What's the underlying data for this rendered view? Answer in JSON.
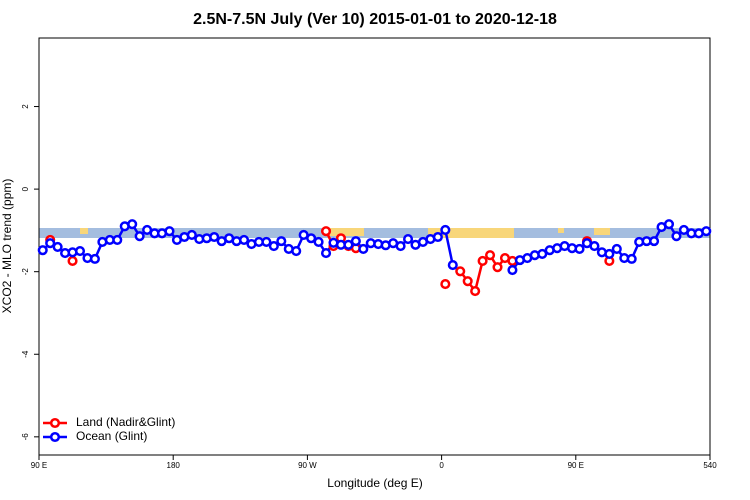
{
  "chart_data": {
    "type": "line",
    "title": "2.5N-7.5N July (Ver 10)   2015-01-01 to 2020-12-18",
    "x_label": "Longitude (deg E)",
    "y_label": "XCO2 - MLO trend (ppm)",
    "x": [
      92.5,
      97.5,
      102.5,
      107.5,
      112.5,
      117.5,
      122.5,
      127.5,
      132.5,
      137.5,
      142.5,
      147.5,
      152.5,
      157.5,
      162.5,
      167.5,
      172.5,
      177.5,
      182.5,
      187.5,
      192.5,
      197.5,
      202.5,
      207.5,
      212.5,
      217.5,
      222.5,
      227.5,
      232.5,
      237.5,
      242.5,
      247.5,
      252.5,
      257.5,
      262.5,
      267.5,
      272.5,
      277.5,
      282.5,
      287.5,
      292.5,
      297.5,
      302.5,
      307.5,
      312.5,
      317.5,
      322.5,
      327.5,
      332.5,
      337.5,
      342.5,
      347.5,
      352.5,
      357.5,
      362.5,
      367.5,
      372.5,
      377.5,
      382.5,
      387.5,
      392.5,
      397.5,
      402.5,
      407.5,
      412.5,
      417.5,
      422.5,
      427.5,
      432.5,
      437.5,
      442.5,
      447.5,
      452.5,
      457.5,
      462.5,
      467.5,
      472.5,
      477.5,
      482.5,
      487.5,
      492.5,
      497.5,
      502.5,
      507.5,
      512.5,
      517.5,
      522.5,
      527.5,
      532.5,
      537.5
    ],
    "series": [
      {
        "name": "Land (Nadir&Glint)",
        "color": "#ff0000",
        "values": [
          null,
          -1.23,
          null,
          null,
          -1.74,
          null,
          null,
          null,
          null,
          null,
          null,
          null,
          null,
          null,
          null,
          null,
          null,
          null,
          null,
          null,
          null,
          null,
          null,
          null,
          null,
          null,
          null,
          null,
          null,
          null,
          null,
          null,
          null,
          null,
          null,
          null,
          null,
          null,
          -1.02,
          -1.38,
          -1.19,
          -1.38,
          -1.43,
          null,
          null,
          null,
          null,
          null,
          null,
          null,
          null,
          null,
          null,
          null,
          -2.3,
          null,
          -1.99,
          -2.23,
          -2.47,
          -1.74,
          -1.6,
          -1.89,
          -1.67,
          -1.74,
          null,
          null,
          null,
          null,
          null,
          null,
          null,
          null,
          null,
          -1.26,
          null,
          null,
          -1.74,
          null,
          null,
          null,
          null,
          null,
          null,
          null,
          null,
          null,
          null,
          null,
          null,
          null
        ]
      },
      {
        "name": "Ocean (Glint)",
        "color": "#0000ff",
        "values": [
          -1.48,
          -1.31,
          -1.4,
          -1.55,
          -1.53,
          -1.5,
          -1.67,
          -1.69,
          -1.28,
          -1.23,
          -1.23,
          -0.9,
          -0.85,
          -1.14,
          -0.99,
          -1.07,
          -1.07,
          -1.02,
          -1.23,
          -1.16,
          -1.11,
          -1.21,
          -1.19,
          -1.16,
          -1.26,
          -1.19,
          -1.26,
          -1.23,
          -1.33,
          -1.28,
          -1.28,
          -1.38,
          -1.26,
          -1.45,
          -1.5,
          -1.11,
          -1.19,
          -1.28,
          -1.55,
          -1.3,
          -1.35,
          -1.35,
          -1.26,
          -1.45,
          -1.31,
          -1.33,
          -1.36,
          -1.31,
          -1.38,
          -1.21,
          -1.35,
          -1.28,
          -1.21,
          -1.16,
          -0.99,
          -1.84,
          null,
          null,
          null,
          null,
          null,
          null,
          null,
          -1.96,
          -1.72,
          -1.67,
          -1.6,
          -1.57,
          -1.48,
          -1.43,
          -1.38,
          -1.43,
          -1.45,
          -1.31,
          -1.38,
          -1.53,
          -1.57,
          -1.45,
          -1.67,
          -1.69,
          -1.28,
          -1.26,
          -1.26,
          -0.92,
          -0.85,
          -1.14,
          -0.99,
          -1.07,
          -1.07,
          -1.02
        ]
      }
    ],
    "xlim": [
      90,
      540
    ],
    "xticks": [
      {
        "value": 90,
        "label": "90 E"
      },
      180,
      {
        "value": 270,
        "label": "90 W"
      },
      {
        "value": 360,
        "label": "0"
      },
      {
        "value": 450,
        "label": "90 E"
      },
      540
    ],
    "ylim": [
      -6.44,
      3.66
    ],
    "yticks": [
      2,
      0,
      -2,
      -4,
      -6
    ],
    "legend": "bottomleft"
  }
}
